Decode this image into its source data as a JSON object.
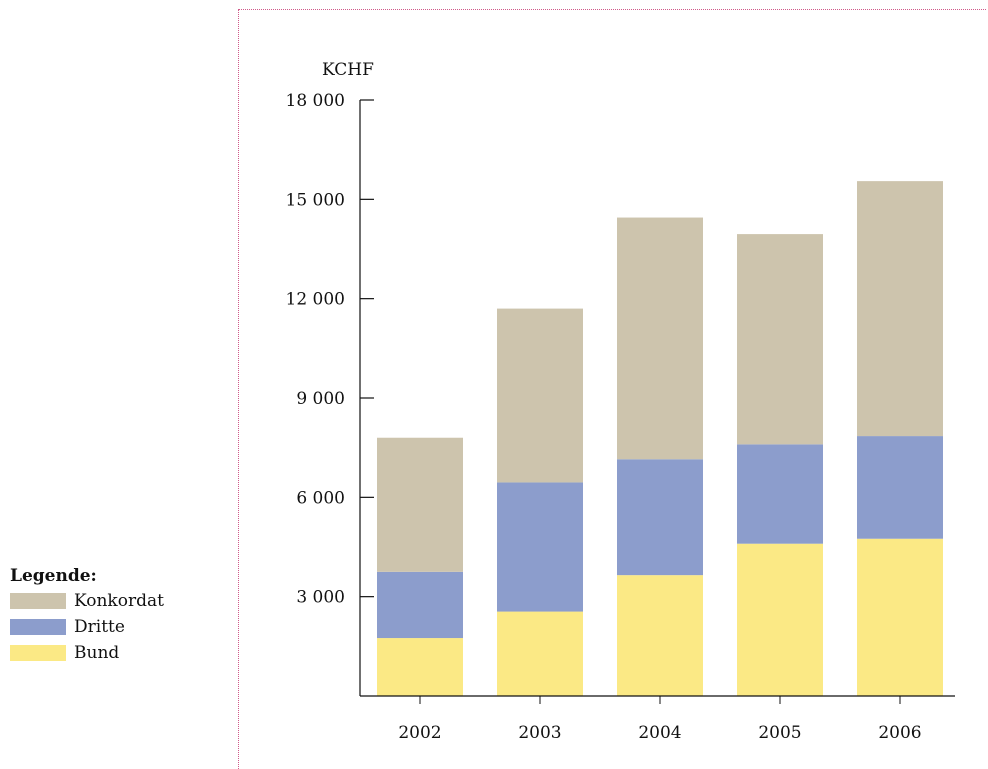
{
  "legend": {
    "title": "Legende:",
    "items": [
      {
        "label": "Konkordat",
        "color": "#cdc4ad"
      },
      {
        "label": "Dritte",
        "color": "#8c9dcc"
      },
      {
        "label": "Bund",
        "color": "#fbe985"
      }
    ]
  },
  "chart_data": {
    "type": "bar",
    "stacked": true,
    "unit_label": "KCHF",
    "categories": [
      "2002",
      "2003",
      "2004",
      "2005",
      "2006"
    ],
    "series": [
      {
        "name": "Bund",
        "color": "#fbe985",
        "values": [
          1750,
          2550,
          3650,
          4600,
          4750
        ]
      },
      {
        "name": "Dritte",
        "color": "#8c9dcc",
        "values": [
          2000,
          3900,
          3500,
          3000,
          3100
        ]
      },
      {
        "name": "Konkordat",
        "color": "#cdc4ad",
        "values": [
          4050,
          5250,
          7300,
          6350,
          7700
        ]
      }
    ],
    "ylim": [
      0,
      18000
    ],
    "yticks": [
      3000,
      6000,
      9000,
      12000,
      15000,
      18000
    ],
    "ytick_labels": [
      "3 000",
      "6 000",
      "9 000",
      "12 000",
      "15 000",
      "18 000"
    ],
    "grid": false,
    "legend_position": "bottom-left"
  }
}
